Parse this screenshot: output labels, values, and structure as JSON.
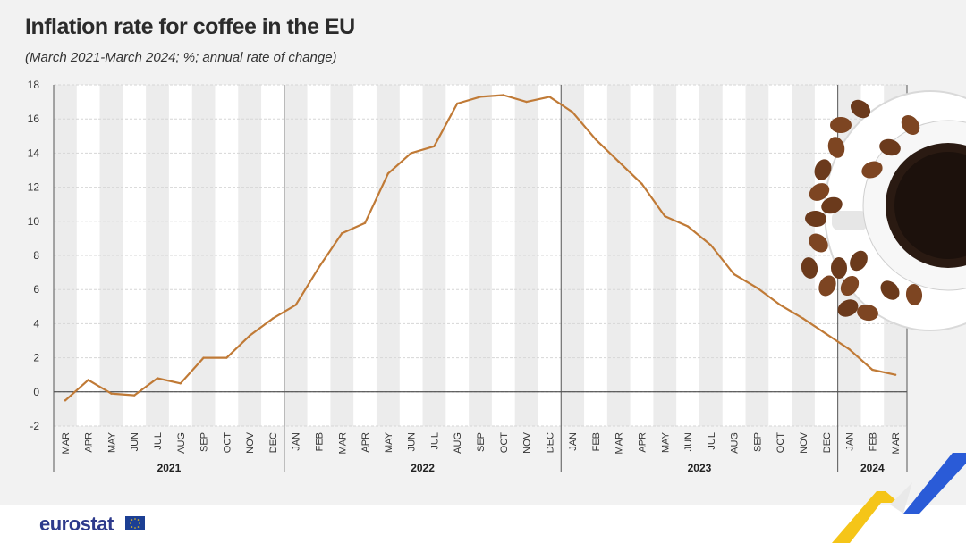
{
  "header": {
    "title": "Inflation rate for coffee in the EU",
    "subtitle": "(March 2021-March 2024; %; annual rate of change)"
  },
  "footer": {
    "logo_text": "eurostat"
  },
  "colors": {
    "line": "#c07a36",
    "background": "#f2f2f2",
    "band": "#ffffff",
    "logo": "#2d3a8c",
    "flag": "#1c3f94",
    "accent_yellow": "#f5c518",
    "accent_blue": "#2a5bd7"
  },
  "decoration": {
    "icon": "coffee-cup-with-beans-icon"
  },
  "chart_data": {
    "type": "line",
    "title": "Inflation rate for coffee in the EU",
    "subtitle": "(March 2021-March 2024; %; annual rate of change)",
    "ylim": [
      -2,
      18
    ],
    "yticks": [
      -2,
      0,
      2,
      4,
      6,
      8,
      10,
      12,
      14,
      16,
      18
    ],
    "grid": true,
    "categories": [
      "MAR",
      "APR",
      "MAY",
      "JUN",
      "JUL",
      "AUG",
      "SEP",
      "OCT",
      "NOV",
      "DEC",
      "JAN",
      "FEB",
      "MAR",
      "APR",
      "MAY",
      "JUN",
      "JUL",
      "AUG",
      "SEP",
      "OCT",
      "NOV",
      "DEC",
      "JAN",
      "FEB",
      "MAR",
      "APR",
      "MAY",
      "JUN",
      "JUL",
      "AUG",
      "SEP",
      "OCT",
      "NOV",
      "DEC",
      "JAN",
      "FEB",
      "MAR"
    ],
    "years": [
      {
        "label": "2021",
        "start": 0,
        "count": 10
      },
      {
        "label": "2022",
        "start": 10,
        "count": 12
      },
      {
        "label": "2023",
        "start": 22,
        "count": 12
      },
      {
        "label": "2024",
        "start": 34,
        "count": 3
      }
    ],
    "series": [
      {
        "values": [
          -0.5,
          0.7,
          -0.1,
          -0.2,
          0.8,
          0.5,
          2.0,
          2.0,
          3.3,
          4.3,
          5.1,
          7.3,
          9.3,
          9.9,
          12.8,
          14.0,
          14.4,
          16.9,
          17.3,
          17.4,
          17.0,
          17.3,
          16.4,
          14.8,
          13.5,
          12.2,
          10.3,
          9.7,
          8.6,
          6.9,
          6.1,
          5.1,
          4.3,
          3.4,
          2.5,
          1.3,
          1.0
        ]
      }
    ]
  }
}
